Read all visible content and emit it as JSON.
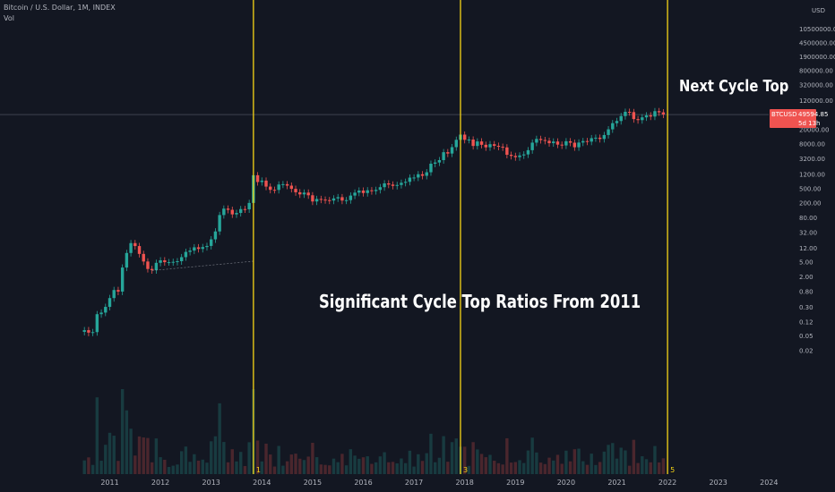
{
  "header": {
    "symbol": "Bitcoin / U.S. Dollar, 1M, INDEX",
    "indicator": "Vol"
  },
  "colors": {
    "bg": "#131722",
    "up": "#26a69a",
    "down": "#ef5350",
    "cycle_line": "#f5d416",
    "text": "#b2b5be"
  },
  "chart_data": {
    "type": "candlestick",
    "title": "",
    "xlabel": "",
    "ylabel": "",
    "y_scale": "log",
    "currency": "USD",
    "x_ticks": [
      "2011",
      "2012",
      "2013",
      "2014",
      "2015",
      "2016",
      "2017",
      "2018",
      "2019",
      "2020",
      "2021",
      "2022",
      "2023",
      "2024"
    ],
    "y_ticks": [
      "10500000.00",
      "4500000.00",
      "1900000.00",
      "800000.00",
      "320000.00",
      "120000.00",
      "20000.00",
      "8000.00",
      "3200.00",
      "1200.00",
      "500.00",
      "200.00",
      "80.00",
      "32.00",
      "12.00",
      "5.00",
      "2.00",
      "0.80",
      "0.30",
      "0.12",
      "0.05",
      "0.02"
    ],
    "price_label": {
      "symbol": "BTCUSD",
      "price": "49594.85",
      "countdown": "5d 13h"
    },
    "annotations": {
      "main": "Significant Cycle Top Ratios From 2011",
      "next": "Next Cycle Top"
    },
    "cycle_markers": [
      {
        "date": "2013-11",
        "label": "1"
      },
      {
        "date": "2017-12",
        "label": "3"
      },
      {
        "date": "2022-01",
        "label": "5"
      }
    ],
    "trendline": {
      "from": {
        "date": "2011-11",
        "price": 2.9
      },
      "to": {
        "date": "2013-11",
        "price": 5.2
      }
    },
    "monthly_close": [
      [
        "2010-07",
        0.07
      ],
      [
        "2010-08",
        0.06
      ],
      [
        "2010-09",
        0.062
      ],
      [
        "2010-10",
        0.19
      ],
      [
        "2010-11",
        0.21
      ],
      [
        "2010-12",
        0.3
      ],
      [
        "2011-01",
        0.52
      ],
      [
        "2011-02",
        0.86
      ],
      [
        "2011-03",
        0.78
      ],
      [
        "2011-04",
        3.5
      ],
      [
        "2011-05",
        8.7
      ],
      [
        "2011-06",
        16.1
      ],
      [
        "2011-07",
        13.4
      ],
      [
        "2011-08",
        8.2
      ],
      [
        "2011-09",
        5.1
      ],
      [
        "2011-10",
        3.2
      ],
      [
        "2011-11",
        2.97
      ],
      [
        "2011-12",
        4.7
      ],
      [
        "2012-01",
        5.5
      ],
      [
        "2012-02",
        4.9
      ],
      [
        "2012-03",
        4.9
      ],
      [
        "2012-04",
        5.0
      ],
      [
        "2012-05",
        5.2
      ],
      [
        "2012-06",
        6.7
      ],
      [
        "2012-07",
        9.3
      ],
      [
        "2012-08",
        10.1
      ],
      [
        "2012-09",
        12.4
      ],
      [
        "2012-10",
        11.2
      ],
      [
        "2012-11",
        12.6
      ],
      [
        "2012-12",
        13.5
      ],
      [
        "2013-01",
        20.4
      ],
      [
        "2013-02",
        33.4
      ],
      [
        "2013-03",
        93
      ],
      [
        "2013-04",
        139
      ],
      [
        "2013-05",
        129
      ],
      [
        "2013-06",
        97
      ],
      [
        "2013-07",
        106
      ],
      [
        "2013-08",
        135
      ],
      [
        "2013-09",
        133
      ],
      [
        "2013-10",
        198
      ],
      [
        "2013-11",
        1120
      ],
      [
        "2013-12",
        732
      ],
      [
        "2014-01",
        800
      ],
      [
        "2014-02",
        550
      ],
      [
        "2014-03",
        450
      ],
      [
        "2014-04",
        447
      ],
      [
        "2014-05",
        627
      ],
      [
        "2014-06",
        640
      ],
      [
        "2014-07",
        584
      ],
      [
        "2014-08",
        478
      ],
      [
        "2014-09",
        386
      ],
      [
        "2014-10",
        338
      ],
      [
        "2014-11",
        378
      ],
      [
        "2014-12",
        320
      ],
      [
        "2015-01",
        217
      ],
      [
        "2015-02",
        254
      ],
      [
        "2015-03",
        244
      ],
      [
        "2015-04",
        236
      ],
      [
        "2015-05",
        230
      ],
      [
        "2015-06",
        263
      ],
      [
        "2015-07",
        284
      ],
      [
        "2015-08",
        230
      ],
      [
        "2015-09",
        236
      ],
      [
        "2015-10",
        314
      ],
      [
        "2015-11",
        377
      ],
      [
        "2015-12",
        430
      ],
      [
        "2016-01",
        368
      ],
      [
        "2016-02",
        437
      ],
      [
        "2016-03",
        416
      ],
      [
        "2016-04",
        448
      ],
      [
        "2016-05",
        531
      ],
      [
        "2016-06",
        673
      ],
      [
        "2016-07",
        624
      ],
      [
        "2016-08",
        575
      ],
      [
        "2016-09",
        609
      ],
      [
        "2016-10",
        698
      ],
      [
        "2016-11",
        742
      ],
      [
        "2016-12",
        964
      ],
      [
        "2017-01",
        970
      ],
      [
        "2017-02",
        1190
      ],
      [
        "2017-03",
        1080
      ],
      [
        "2017-04",
        1348
      ],
      [
        "2017-05",
        2300
      ],
      [
        "2017-06",
        2480
      ],
      [
        "2017-07",
        2875
      ],
      [
        "2017-08",
        4718
      ],
      [
        "2017-09",
        4338
      ],
      [
        "2017-10",
        6468
      ],
      [
        "2017-11",
        10233
      ],
      [
        "2017-12",
        14156
      ],
      [
        "2018-01",
        10221
      ],
      [
        "2018-02",
        10397
      ],
      [
        "2018-03",
        6973
      ],
      [
        "2018-04",
        9240
      ],
      [
        "2018-05",
        7494
      ],
      [
        "2018-06",
        6404
      ],
      [
        "2018-07",
        7780
      ],
      [
        "2018-08",
        7037
      ],
      [
        "2018-09",
        6626
      ],
      [
        "2018-10",
        6371
      ],
      [
        "2018-11",
        4017
      ],
      [
        "2018-12",
        3742
      ],
      [
        "2019-01",
        3457
      ],
      [
        "2019-02",
        3854
      ],
      [
        "2019-03",
        4105
      ],
      [
        "2019-04",
        5350
      ],
      [
        "2019-05",
        8574
      ],
      [
        "2019-06",
        10817
      ],
      [
        "2019-07",
        10085
      ],
      [
        "2019-08",
        9630
      ],
      [
        "2019-09",
        8293
      ],
      [
        "2019-10",
        9199
      ],
      [
        "2019-11",
        7569
      ],
      [
        "2019-12",
        7193
      ],
      [
        "2020-01",
        9350
      ],
      [
        "2020-02",
        8543
      ],
      [
        "2020-03",
        6424
      ],
      [
        "2020-04",
        8624
      ],
      [
        "2020-05",
        9455
      ],
      [
        "2020-06",
        9138
      ],
      [
        "2020-07",
        11323
      ],
      [
        "2020-08",
        11680
      ],
      [
        "2020-09",
        10784
      ],
      [
        "2020-10",
        13804
      ],
      [
        "2020-11",
        19700
      ],
      [
        "2020-12",
        28949
      ],
      [
        "2021-01",
        33114
      ],
      [
        "2021-02",
        45137
      ],
      [
        "2021-03",
        58918
      ],
      [
        "2021-04",
        57750
      ],
      [
        "2021-05",
        37332
      ],
      [
        "2021-06",
        35040
      ],
      [
        "2021-07",
        41626
      ],
      [
        "2021-08",
        47166
      ],
      [
        "2021-09",
        43791
      ],
      [
        "2021-10",
        61318
      ],
      [
        "2021-11",
        57005
      ],
      [
        "2021-12",
        49594.85
      ]
    ]
  }
}
